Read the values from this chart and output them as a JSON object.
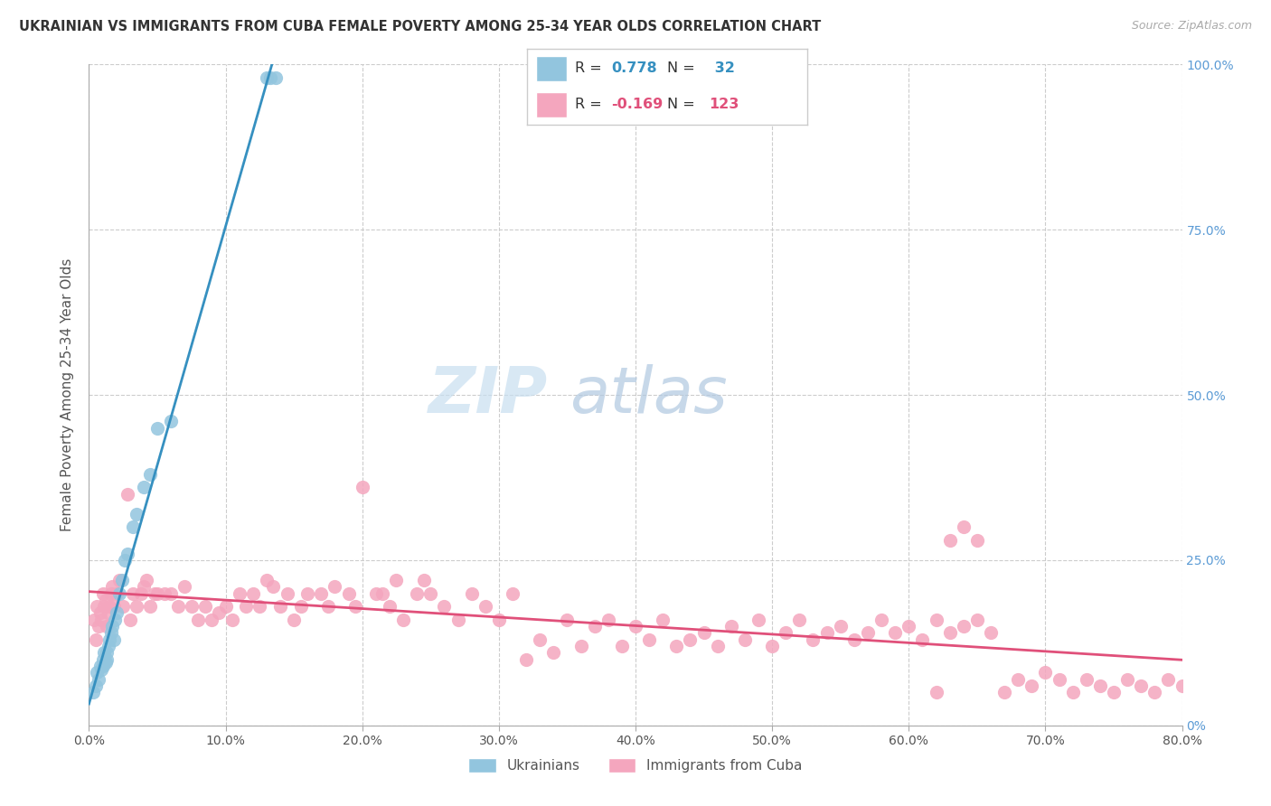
{
  "title": "UKRAINIAN VS IMMIGRANTS FROM CUBA FEMALE POVERTY AMONG 25-34 YEAR OLDS CORRELATION CHART",
  "source": "Source: ZipAtlas.com",
  "ylabel": "Female Poverty Among 25-34 Year Olds",
  "R1": 0.778,
  "N1": 32,
  "R2": -0.169,
  "N2": 123,
  "color_blue": "#92c5de",
  "color_pink": "#f4a6be",
  "color_blue_line": "#3690c0",
  "color_pink_line": "#e0507a",
  "legend_label1": "Ukrainians",
  "legend_label2": "Immigrants from Cuba",
  "watermark_color": "#d6e8f5",
  "xlim": [
    0.0,
    0.8
  ],
  "ylim": [
    0.0,
    1.0
  ],
  "xtick_vals": [
    0.0,
    0.1,
    0.2,
    0.3,
    0.4,
    0.5,
    0.6,
    0.7,
    0.8
  ],
  "xtick_labels": [
    "0.0%",
    "10.0%",
    "20.0%",
    "30.0%",
    "40.0%",
    "50.0%",
    "60.0%",
    "70.0%",
    "80.0%"
  ],
  "ytick_vals": [
    0.0,
    0.25,
    0.5,
    0.75,
    1.0
  ],
  "ytick_labels_right": [
    "0%",
    "25.0%",
    "50.0%",
    "75.0%",
    "100.0%"
  ],
  "ukr_x": [
    0.003,
    0.005,
    0.006,
    0.007,
    0.008,
    0.009,
    0.01,
    0.01,
    0.011,
    0.012,
    0.013,
    0.013,
    0.014,
    0.015,
    0.016,
    0.017,
    0.018,
    0.019,
    0.02,
    0.022,
    0.024,
    0.026,
    0.028,
    0.032,
    0.035,
    0.04,
    0.045,
    0.05,
    0.06,
    0.13,
    0.133,
    0.137
  ],
  "ukr_y": [
    0.05,
    0.06,
    0.08,
    0.07,
    0.09,
    0.085,
    0.1,
    0.09,
    0.11,
    0.095,
    0.11,
    0.1,
    0.12,
    0.13,
    0.14,
    0.15,
    0.13,
    0.16,
    0.17,
    0.2,
    0.22,
    0.25,
    0.26,
    0.3,
    0.32,
    0.36,
    0.38,
    0.45,
    0.46,
    0.98,
    0.98,
    0.98
  ],
  "cuba_x": [
    0.004,
    0.005,
    0.006,
    0.007,
    0.008,
    0.009,
    0.01,
    0.011,
    0.012,
    0.013,
    0.014,
    0.015,
    0.016,
    0.017,
    0.018,
    0.02,
    0.022,
    0.025,
    0.028,
    0.03,
    0.032,
    0.035,
    0.038,
    0.04,
    0.042,
    0.045,
    0.048,
    0.05,
    0.055,
    0.06,
    0.065,
    0.07,
    0.075,
    0.08,
    0.085,
    0.09,
    0.095,
    0.1,
    0.105,
    0.11,
    0.115,
    0.12,
    0.125,
    0.13,
    0.135,
    0.14,
    0.145,
    0.15,
    0.155,
    0.16,
    0.17,
    0.175,
    0.18,
    0.19,
    0.195,
    0.2,
    0.21,
    0.215,
    0.22,
    0.225,
    0.23,
    0.24,
    0.245,
    0.25,
    0.26,
    0.27,
    0.28,
    0.29,
    0.3,
    0.31,
    0.32,
    0.33,
    0.34,
    0.35,
    0.36,
    0.37,
    0.38,
    0.39,
    0.4,
    0.41,
    0.42,
    0.43,
    0.44,
    0.45,
    0.46,
    0.47,
    0.48,
    0.49,
    0.5,
    0.51,
    0.52,
    0.53,
    0.54,
    0.55,
    0.56,
    0.57,
    0.58,
    0.59,
    0.6,
    0.61,
    0.62,
    0.63,
    0.64,
    0.65,
    0.66,
    0.67,
    0.68,
    0.69,
    0.7,
    0.71,
    0.72,
    0.73,
    0.74,
    0.75,
    0.76,
    0.77,
    0.78,
    0.79,
    0.8,
    0.62,
    0.63,
    0.64,
    0.65
  ],
  "cuba_y": [
    0.16,
    0.13,
    0.18,
    0.15,
    0.17,
    0.16,
    0.2,
    0.18,
    0.19,
    0.15,
    0.17,
    0.18,
    0.2,
    0.21,
    0.18,
    0.2,
    0.22,
    0.18,
    0.35,
    0.16,
    0.2,
    0.18,
    0.2,
    0.21,
    0.22,
    0.18,
    0.2,
    0.2,
    0.2,
    0.2,
    0.18,
    0.21,
    0.18,
    0.16,
    0.18,
    0.16,
    0.17,
    0.18,
    0.16,
    0.2,
    0.18,
    0.2,
    0.18,
    0.22,
    0.21,
    0.18,
    0.2,
    0.16,
    0.18,
    0.2,
    0.2,
    0.18,
    0.21,
    0.2,
    0.18,
    0.36,
    0.2,
    0.2,
    0.18,
    0.22,
    0.16,
    0.2,
    0.22,
    0.2,
    0.18,
    0.16,
    0.2,
    0.18,
    0.16,
    0.2,
    0.1,
    0.13,
    0.11,
    0.16,
    0.12,
    0.15,
    0.16,
    0.12,
    0.15,
    0.13,
    0.16,
    0.12,
    0.13,
    0.14,
    0.12,
    0.15,
    0.13,
    0.16,
    0.12,
    0.14,
    0.16,
    0.13,
    0.14,
    0.15,
    0.13,
    0.14,
    0.16,
    0.14,
    0.15,
    0.13,
    0.16,
    0.14,
    0.15,
    0.16,
    0.14,
    0.05,
    0.07,
    0.06,
    0.08,
    0.07,
    0.05,
    0.07,
    0.06,
    0.05,
    0.07,
    0.06,
    0.05,
    0.07,
    0.06,
    0.05,
    0.28,
    0.3,
    0.28
  ]
}
